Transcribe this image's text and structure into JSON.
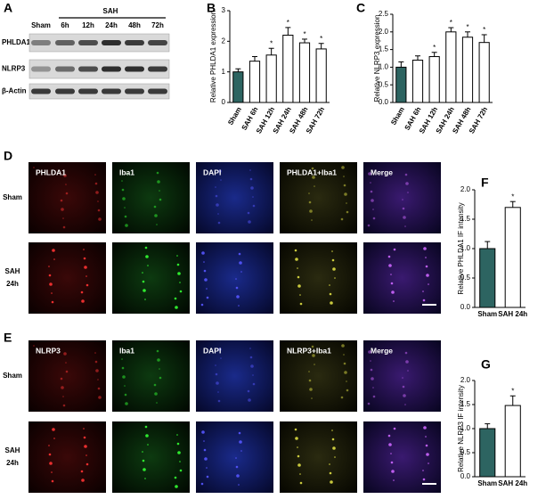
{
  "panel_labels": [
    "A",
    "B",
    "C",
    "D",
    "E",
    "F",
    "G"
  ],
  "blot": {
    "group_label": "SAH",
    "lanes": [
      "Sham",
      "6h",
      "12h",
      "24h",
      "48h",
      "72h"
    ],
    "rows": [
      "PHLDA1",
      "NLRP3",
      "β-Actin"
    ]
  },
  "if_d": {
    "columns": [
      "PHLDA1",
      "Iba1",
      "DAPI",
      "PHLDA1+Iba1",
      "Merge"
    ],
    "rows": [
      [
        "Sham"
      ],
      [
        "SAH",
        "24h"
      ]
    ]
  },
  "if_e": {
    "columns": [
      "NLRP3",
      "Iba1",
      "DAPI",
      "NLRP3+Iba1",
      "Merge"
    ],
    "rows": [
      [
        "Sham"
      ],
      [
        "SAH",
        "24h"
      ]
    ]
  },
  "chart_data": [
    {
      "type": "bar",
      "ylabel": "Relative PHLDA1 expression",
      "categories": [
        "Sham",
        "SAH 6h",
        "SAH 12h",
        "SAH 24h",
        "SAH 48h",
        "SAH 72h"
      ],
      "values": [
        1.0,
        1.35,
        1.55,
        2.2,
        1.95,
        1.75
      ],
      "errors": [
        0.1,
        0.15,
        0.22,
        0.25,
        0.12,
        0.18
      ],
      "colors": [
        "#2d6461",
        "#ffffff",
        "#ffffff",
        "#ffffff",
        "#ffffff",
        "#ffffff"
      ],
      "annotations": [
        null,
        null,
        "*",
        "*",
        "*",
        "*"
      ],
      "ylim": [
        0,
        3
      ],
      "yticks": [
        0,
        1,
        2,
        3
      ]
    },
    {
      "type": "bar",
      "ylabel": "Relative NLRP3 expression",
      "categories": [
        "Sham",
        "SAH 6h",
        "SAH 12h",
        "SAH 24h",
        "SAH 48h",
        "SAH 72h"
      ],
      "values": [
        1.0,
        1.2,
        1.3,
        2.0,
        1.85,
        1.7
      ],
      "errors": [
        0.15,
        0.12,
        0.12,
        0.12,
        0.15,
        0.22
      ],
      "colors": [
        "#2d6461",
        "#ffffff",
        "#ffffff",
        "#ffffff",
        "#ffffff",
        "#ffffff"
      ],
      "annotations": [
        null,
        null,
        "*",
        "*",
        "*",
        "*"
      ],
      "ylim": [
        0,
        2.5
      ],
      "yticks": [
        {
          "value": 0,
          "label": "0.0"
        },
        0.5,
        {
          "value": 1,
          "label": "1.0"
        },
        1.5,
        {
          "value": 2,
          "label": "2.0"
        },
        2.5
      ]
    },
    {
      "type": "bar",
      "ylabel": "Relative PHLDA1 IF intensity",
      "categories": [
        "Sham",
        "SAH 24h"
      ],
      "values": [
        1.0,
        1.7
      ],
      "errors": [
        0.12,
        0.1
      ],
      "colors": [
        "#2d6461",
        "#ffffff"
      ],
      "annotations": [
        null,
        "*"
      ],
      "ylim": [
        0,
        2
      ],
      "yticks": [
        {
          "value": 0,
          "label": "0.0"
        },
        0.5,
        {
          "value": 1,
          "label": "1.0"
        },
        1.5,
        {
          "value": 2,
          "label": "2.0"
        }
      ]
    },
    {
      "type": "bar",
      "ylabel": "Relative NLRP3 IF intensity",
      "categories": [
        "Sham",
        "SAH 24h"
      ],
      "values": [
        1.0,
        1.48
      ],
      "errors": [
        0.1,
        0.2
      ],
      "colors": [
        "#2d6461",
        "#ffffff"
      ],
      "annotations": [
        null,
        "*"
      ],
      "ylim": [
        0,
        2
      ],
      "yticks": [
        {
          "value": 0,
          "label": "0.0"
        },
        0.5,
        {
          "value": 1,
          "label": "1.0"
        },
        1.5,
        {
          "value": 2,
          "label": "2.0"
        }
      ]
    }
  ]
}
